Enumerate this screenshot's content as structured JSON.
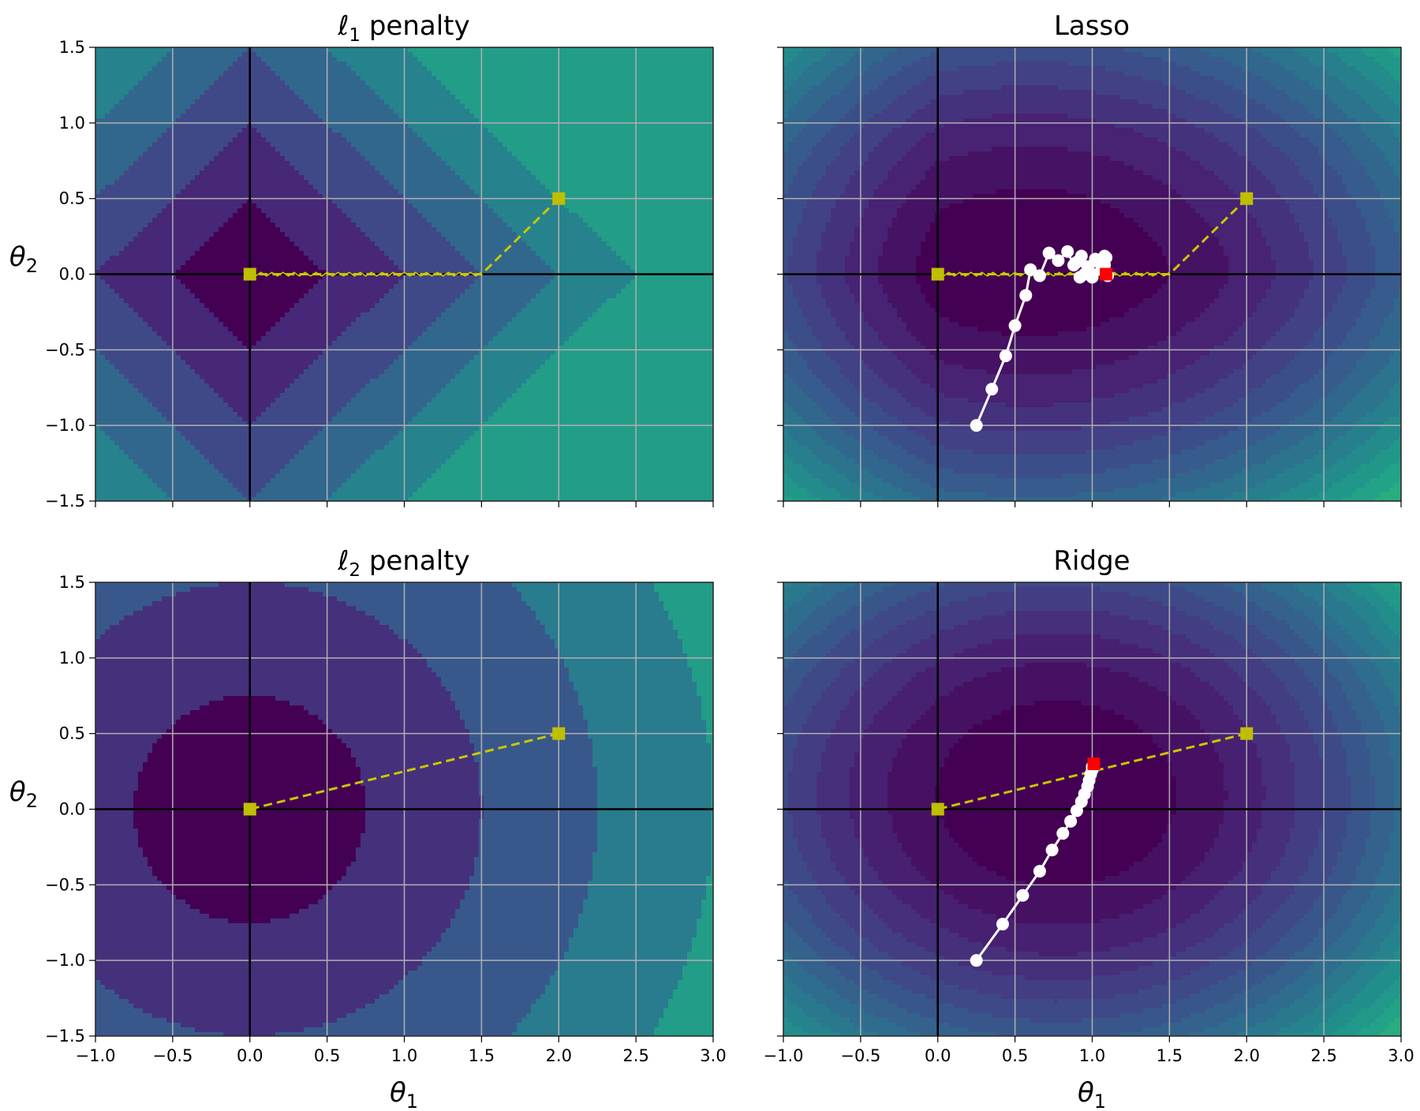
{
  "chart_data": [
    {
      "type": "contour",
      "id": "l1_penalty",
      "title": "ℓ1 penalty",
      "title_base": "ℓ",
      "title_sub": "1",
      "title_rest": " penalty",
      "surface": "l1",
      "xlabel": "",
      "ylabel": "θ2",
      "xlim": [
        -1.0,
        3.0
      ],
      "ylim": [
        -1.5,
        1.5
      ],
      "xticks": [
        "−1.0",
        "−0.5",
        "0.0",
        "0.5",
        "1.0",
        "1.5",
        "2.0",
        "2.5",
        "3.0"
      ],
      "yticks": [
        "−1.5",
        "−1.0",
        "−0.5",
        "0.0",
        "0.5",
        "1.0",
        "1.5"
      ],
      "show_xtick_labels": false,
      "show_ytick_labels": true,
      "grid": true,
      "yellow_path": [
        [
          2.0,
          0.5
        ],
        [
          1.5,
          0.0
        ],
        [
          0.0,
          0.0
        ]
      ],
      "yellow_markers": [
        [
          0.0,
          0.0
        ],
        [
          2.0,
          0.5
        ]
      ],
      "white_path": [],
      "red_marker": null
    },
    {
      "type": "contour",
      "id": "lasso",
      "title": "Lasso",
      "surface": "lasso",
      "xlabel": "",
      "ylabel": "",
      "xlim": [
        -1.0,
        3.0
      ],
      "ylim": [
        -1.5,
        1.5
      ],
      "xticks": [
        "−1.0",
        "−0.5",
        "0.0",
        "0.5",
        "1.0",
        "1.5",
        "2.0",
        "2.5",
        "3.0"
      ],
      "yticks": [
        "−1.5",
        "−1.0",
        "−0.5",
        "0.0",
        "0.5",
        "1.0",
        "1.5"
      ],
      "show_xtick_labels": false,
      "show_ytick_labels": false,
      "grid": true,
      "yellow_path": [
        [
          2.0,
          0.5
        ],
        [
          1.5,
          0.0
        ],
        [
          0.0,
          0.0
        ]
      ],
      "yellow_markers": [
        [
          0.0,
          0.0
        ],
        [
          2.0,
          0.5
        ]
      ],
      "white_path": [
        [
          0.25,
          -1.0
        ],
        [
          0.35,
          -0.76
        ],
        [
          0.44,
          -0.54
        ],
        [
          0.5,
          -0.34
        ],
        [
          0.57,
          -0.14
        ],
        [
          0.6,
          0.03
        ],
        [
          0.66,
          -0.01
        ],
        [
          0.72,
          0.14
        ],
        [
          0.78,
          0.09
        ],
        [
          0.84,
          0.15
        ],
        [
          0.88,
          0.06
        ],
        [
          0.93,
          0.12
        ],
        [
          0.97,
          0.05
        ],
        [
          1.02,
          0.1
        ],
        [
          1.06,
          0.03
        ],
        [
          1.09,
          0.11
        ],
        [
          1.0,
          -0.02
        ],
        [
          1.05,
          0.08
        ],
        [
          0.92,
          -0.02
        ],
        [
          1.08,
          0.06
        ],
        [
          0.9,
          0.08
        ],
        [
          1.1,
          -0.01
        ],
        [
          1.08,
          0.12
        ],
        [
          0.95,
          0.0
        ],
        [
          1.09,
          0.0
        ]
      ],
      "red_marker": [
        1.09,
        0.0
      ]
    },
    {
      "type": "contour",
      "id": "l2_penalty",
      "title": "ℓ2 penalty",
      "title_base": "ℓ",
      "title_sub": "2",
      "title_rest": " penalty",
      "surface": "l2",
      "xlabel": "θ1",
      "ylabel": "θ2",
      "xlim": [
        -1.0,
        3.0
      ],
      "ylim": [
        -1.5,
        1.5
      ],
      "xticks": [
        "−1.0",
        "−0.5",
        "0.0",
        "0.5",
        "1.0",
        "1.5",
        "2.0",
        "2.5",
        "3.0"
      ],
      "yticks": [
        "−1.5",
        "−1.0",
        "−0.5",
        "0.0",
        "0.5",
        "1.0",
        "1.5"
      ],
      "show_xtick_labels": true,
      "show_ytick_labels": true,
      "grid": true,
      "yellow_path": [
        [
          2.0,
          0.5
        ],
        [
          0.0,
          0.0
        ]
      ],
      "yellow_markers": [
        [
          0.0,
          0.0
        ],
        [
          2.0,
          0.5
        ]
      ],
      "white_path": [],
      "red_marker": null
    },
    {
      "type": "contour",
      "id": "ridge",
      "title": "Ridge",
      "surface": "ridge",
      "xlabel": "θ1",
      "ylabel": "",
      "xlim": [
        -1.0,
        3.0
      ],
      "ylim": [
        -1.5,
        1.5
      ],
      "xticks": [
        "−1.0",
        "−0.5",
        "0.0",
        "0.5",
        "1.0",
        "1.5",
        "2.0",
        "2.5",
        "3.0"
      ],
      "yticks": [
        "−1.5",
        "−1.0",
        "−0.5",
        "0.0",
        "0.5",
        "1.0",
        "1.5"
      ],
      "show_xtick_labels": true,
      "show_ytick_labels": false,
      "grid": true,
      "yellow_path": [
        [
          2.0,
          0.5
        ],
        [
          0.0,
          0.0
        ]
      ],
      "yellow_markers": [
        [
          0.0,
          0.0
        ],
        [
          2.0,
          0.5
        ]
      ],
      "white_path": [
        [
          0.25,
          -1.0
        ],
        [
          0.42,
          -0.76
        ],
        [
          0.55,
          -0.57
        ],
        [
          0.66,
          -0.41
        ],
        [
          0.74,
          -0.27
        ],
        [
          0.81,
          -0.16
        ],
        [
          0.86,
          -0.08
        ],
        [
          0.9,
          -0.01
        ],
        [
          0.93,
          0.05
        ],
        [
          0.95,
          0.1
        ],
        [
          0.97,
          0.15
        ],
        [
          0.98,
          0.19
        ],
        [
          0.99,
          0.23
        ],
        [
          1.0,
          0.26
        ],
        [
          1.0,
          0.28
        ],
        [
          1.01,
          0.29
        ],
        [
          1.01,
          0.3
        ]
      ],
      "red_marker": [
        1.01,
        0.3
      ]
    }
  ],
  "colors": {
    "viridis": [
      "#440154",
      "#482475",
      "#414487",
      "#355f8d",
      "#2a788e",
      "#21918c",
      "#22a884",
      "#44bf70",
      "#7ad151",
      "#bddf26",
      "#fde725"
    ],
    "yellow": "#bfbf00",
    "yellow_line": "#c8c800",
    "white": "#ffffff",
    "red": "#ff0000",
    "axis_line": "#000000",
    "grid": "#b0b0b0"
  }
}
